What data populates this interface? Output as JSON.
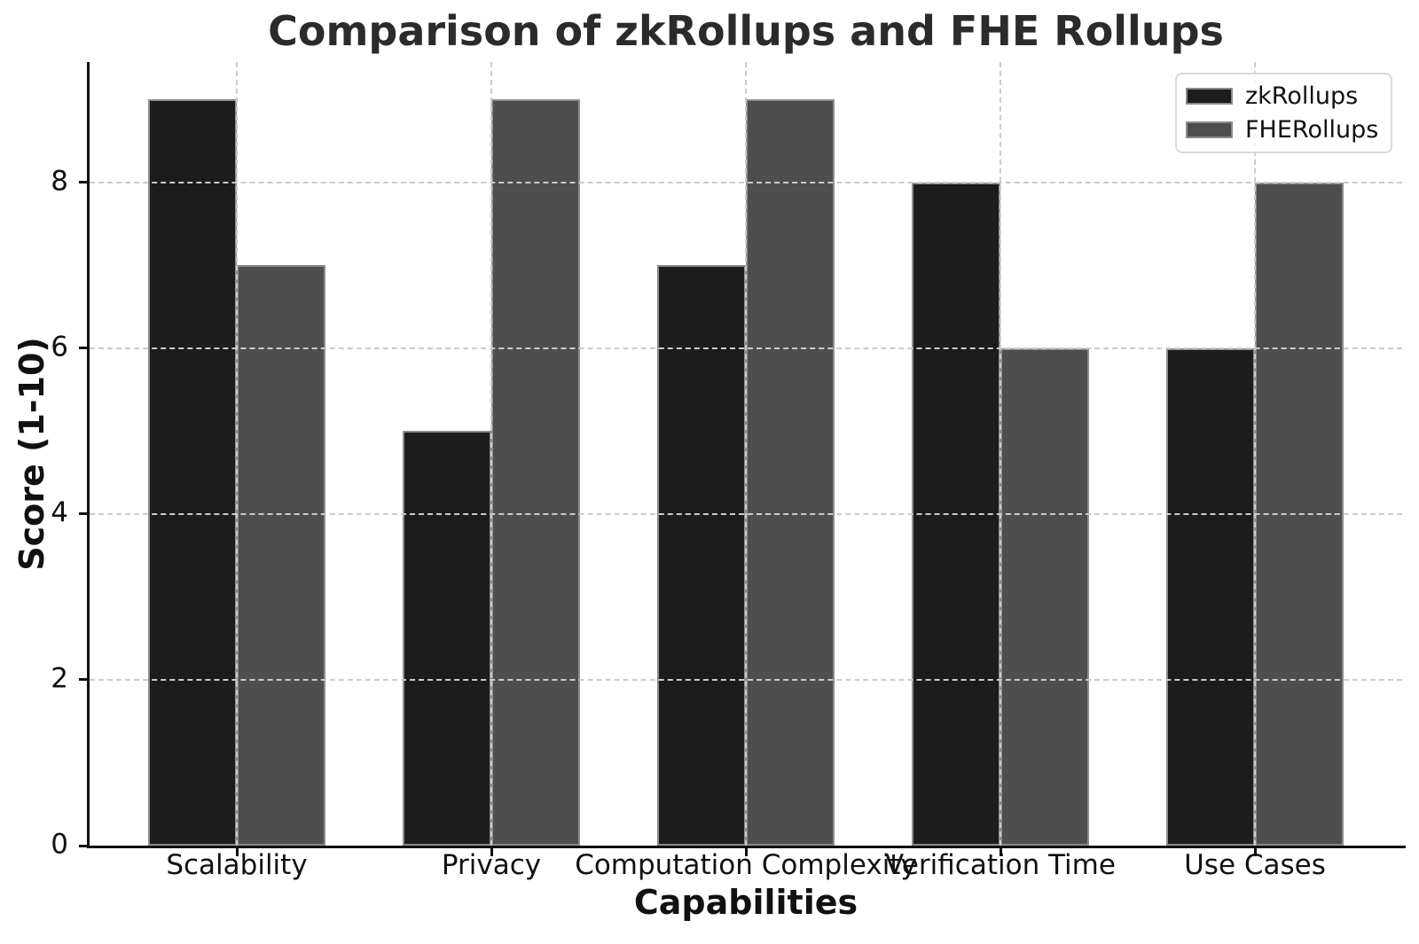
{
  "chart_data": {
    "type": "bar",
    "title": "Comparison of zkRollups and FHE Rollups",
    "xlabel": "Capabilities",
    "ylabel": "Score (1-10)",
    "categories": [
      "Scalability",
      "Privacy",
      "Computation Complexity",
      "Verification Time",
      "Use Cases"
    ],
    "series": [
      {
        "name": "zkRollups",
        "color": "#1c1c1c",
        "values": [
          9,
          5,
          7,
          8,
          6
        ]
      },
      {
        "name": "FHERollups",
        "color": "#4e4e4e",
        "values": [
          7,
          9,
          9,
          6,
          8
        ]
      }
    ],
    "yticks": [
      0,
      2,
      4,
      6,
      8
    ],
    "ylim": [
      0,
      9.45
    ],
    "grid": "dashed, horizontal at yticks and vertical at category centers, drawn above bars",
    "legend_position": "upper right",
    "colors": {
      "bar_edge": "#8c8c8c",
      "gridline": "#cbcbcb",
      "axis_spine": "#111111",
      "text": "#111111",
      "background": "#ffffff"
    }
  }
}
